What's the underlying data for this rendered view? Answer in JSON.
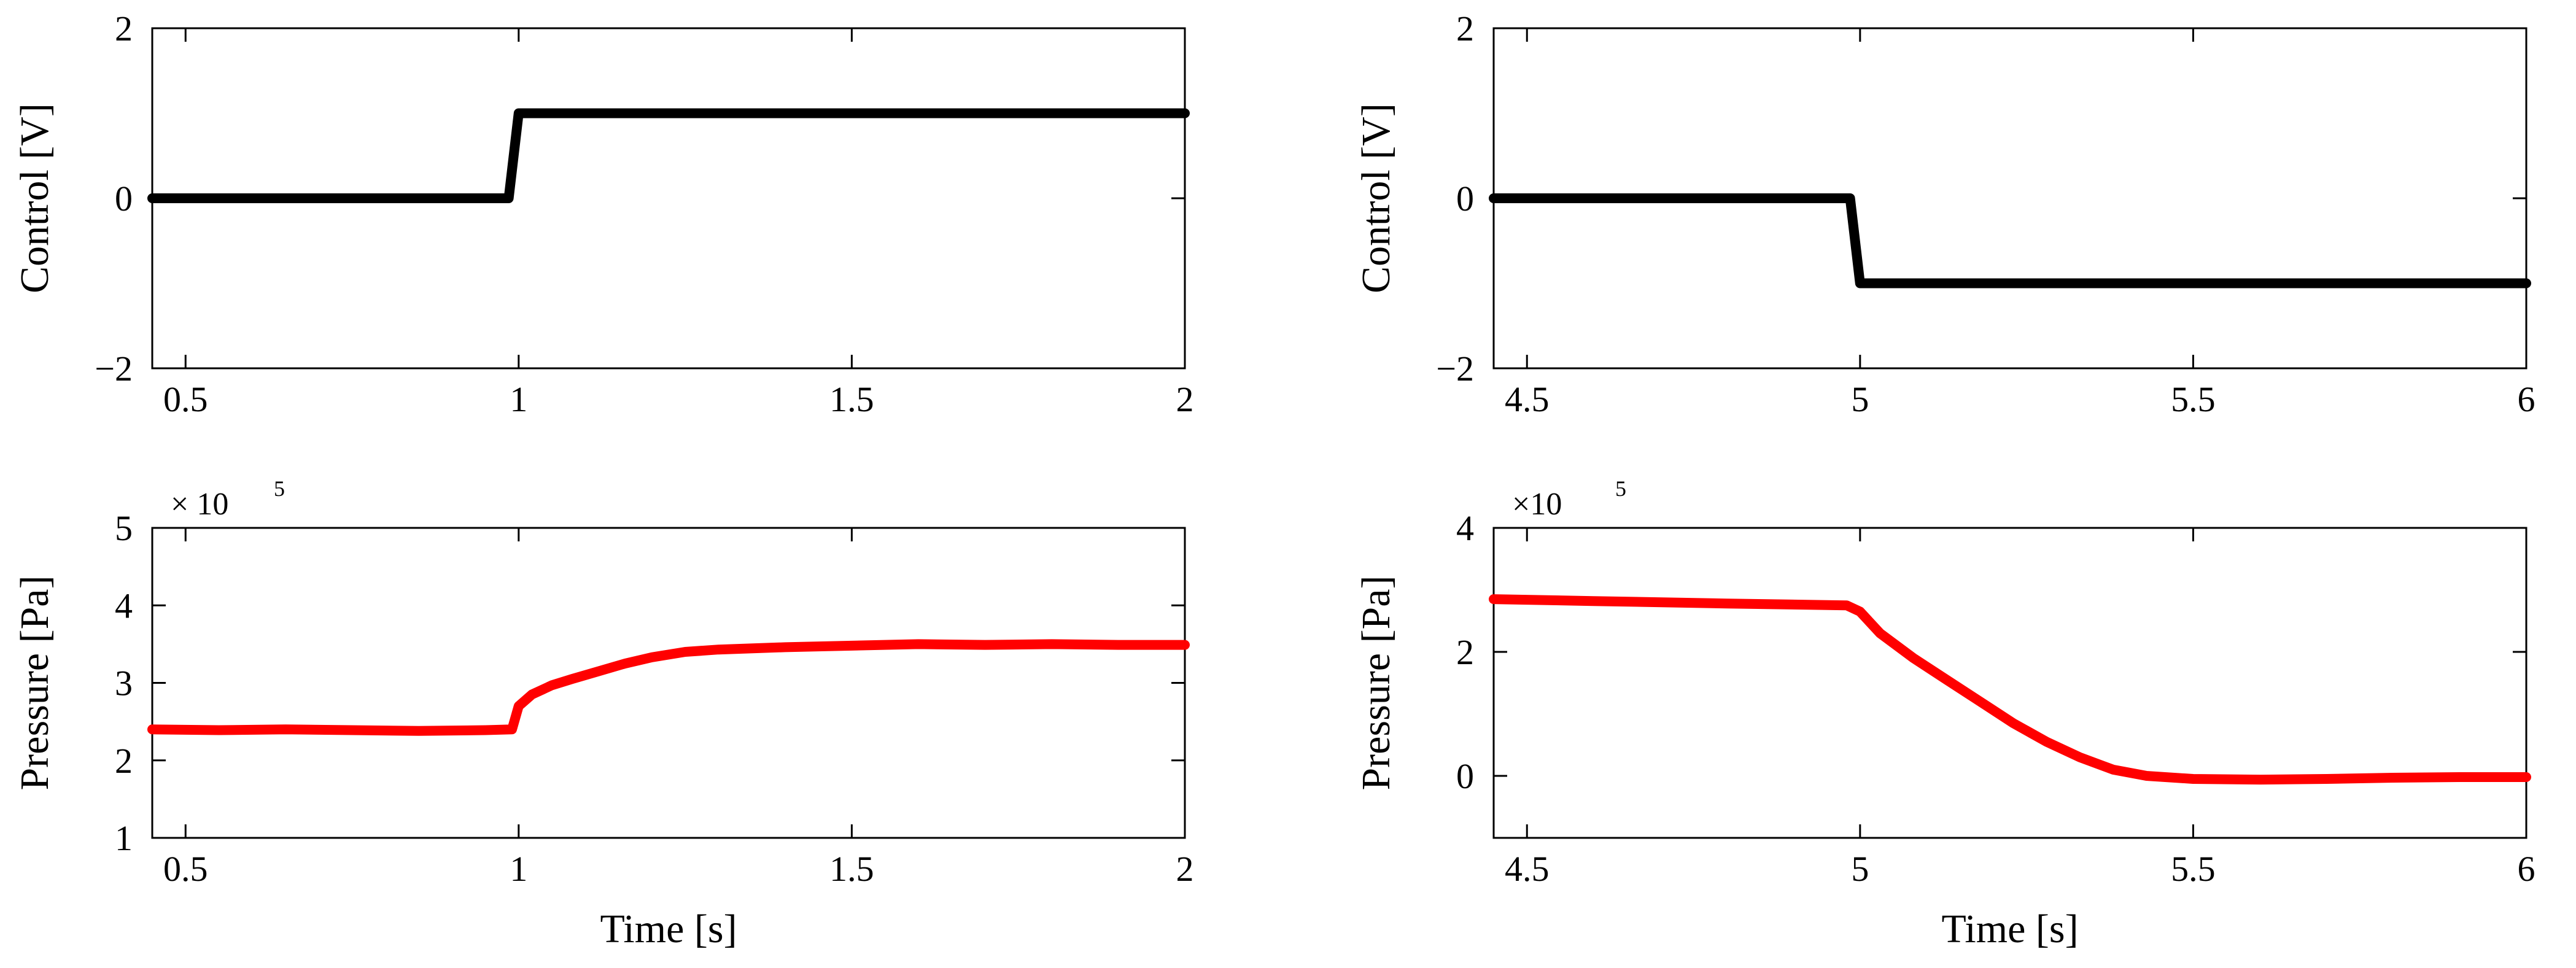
{
  "chart_data": [
    {
      "id": "control-left",
      "type": "line",
      "ylabel": "Control [V]",
      "xlabel": "",
      "xlim": [
        0.45,
        2.0
      ],
      "ylim": [
        -2,
        2
      ],
      "xticks": [
        0.5,
        1,
        1.5,
        2
      ],
      "xtick_labels": [
        "0.5",
        "1",
        "1.5",
        "2"
      ],
      "yticks": [
        -2,
        0,
        2
      ],
      "ytick_labels": [
        "−2",
        "0",
        "2"
      ],
      "series": [
        {
          "color": "#000000",
          "x": [
            0.45,
            0.985,
            1.0,
            2.0
          ],
          "y": [
            0,
            0,
            1,
            1
          ]
        }
      ]
    },
    {
      "id": "control-right",
      "type": "line",
      "ylabel": "Control [V]",
      "xlabel": "",
      "xlim": [
        4.45,
        6.0
      ],
      "ylim": [
        -2,
        2
      ],
      "xticks": [
        4.5,
        5,
        5.5,
        6
      ],
      "xtick_labels": [
        "4.5",
        "5",
        "5.5",
        "6"
      ],
      "yticks": [
        -2,
        0,
        2
      ],
      "ytick_labels": [
        "−2",
        "0",
        "2"
      ],
      "series": [
        {
          "color": "#000000",
          "x": [
            4.45,
            4.985,
            5.0,
            6.0
          ],
          "y": [
            0,
            0,
            -1,
            -1
          ]
        }
      ]
    },
    {
      "id": "pressure-left",
      "type": "line",
      "ylabel": "Pressure [Pa]",
      "xlabel": "Time [s]",
      "exponent_base": "× 10",
      "exponent_power": "5",
      "xlim": [
        0.45,
        2.0
      ],
      "ylim": [
        1,
        5
      ],
      "xticks": [
        0.5,
        1,
        1.5,
        2
      ],
      "xtick_labels": [
        "0.5",
        "1",
        "1.5",
        "2"
      ],
      "yticks": [
        1,
        2,
        3,
        4,
        5
      ],
      "ytick_labels": [
        "1",
        "2",
        "3",
        "4",
        "5"
      ],
      "series": [
        {
          "color": "#ff0000",
          "x": [
            0.45,
            0.55,
            0.65,
            0.75,
            0.85,
            0.95,
            0.99,
            1.0,
            1.02,
            1.05,
            1.08,
            1.12,
            1.16,
            1.2,
            1.25,
            1.3,
            1.4,
            1.5,
            1.6,
            1.7,
            1.8,
            1.9,
            2.0
          ],
          "y": [
            2.4,
            2.39,
            2.4,
            2.39,
            2.38,
            2.39,
            2.4,
            2.7,
            2.85,
            2.97,
            3.05,
            3.15,
            3.25,
            3.33,
            3.4,
            3.43,
            3.46,
            3.48,
            3.5,
            3.49,
            3.5,
            3.49,
            3.49
          ]
        }
      ]
    },
    {
      "id": "pressure-right",
      "type": "line",
      "ylabel": "Pressure [Pa]",
      "xlabel": "Time [s]",
      "exponent_base": "×10",
      "exponent_power": "5",
      "xlim": [
        4.45,
        6.0
      ],
      "ylim": [
        -1,
        4
      ],
      "xticks": [
        4.5,
        5,
        5.5,
        6
      ],
      "xtick_labels": [
        "4.5",
        "5",
        "5.5",
        "6"
      ],
      "yticks": [
        0,
        2,
        4
      ],
      "ytick_labels": [
        "0",
        "2",
        "4"
      ],
      "series": [
        {
          "color": "#ff0000",
          "x": [
            4.45,
            4.6,
            4.8,
            4.98,
            5.0,
            5.03,
            5.08,
            5.13,
            5.18,
            5.23,
            5.28,
            5.33,
            5.38,
            5.43,
            5.5,
            5.6,
            5.7,
            5.8,
            5.9,
            6.0
          ],
          "y": [
            2.85,
            2.82,
            2.78,
            2.75,
            2.65,
            2.3,
            1.9,
            1.55,
            1.2,
            0.85,
            0.55,
            0.3,
            0.1,
            0.0,
            -0.05,
            -0.06,
            -0.05,
            -0.03,
            -0.02,
            -0.02
          ]
        }
      ]
    }
  ]
}
